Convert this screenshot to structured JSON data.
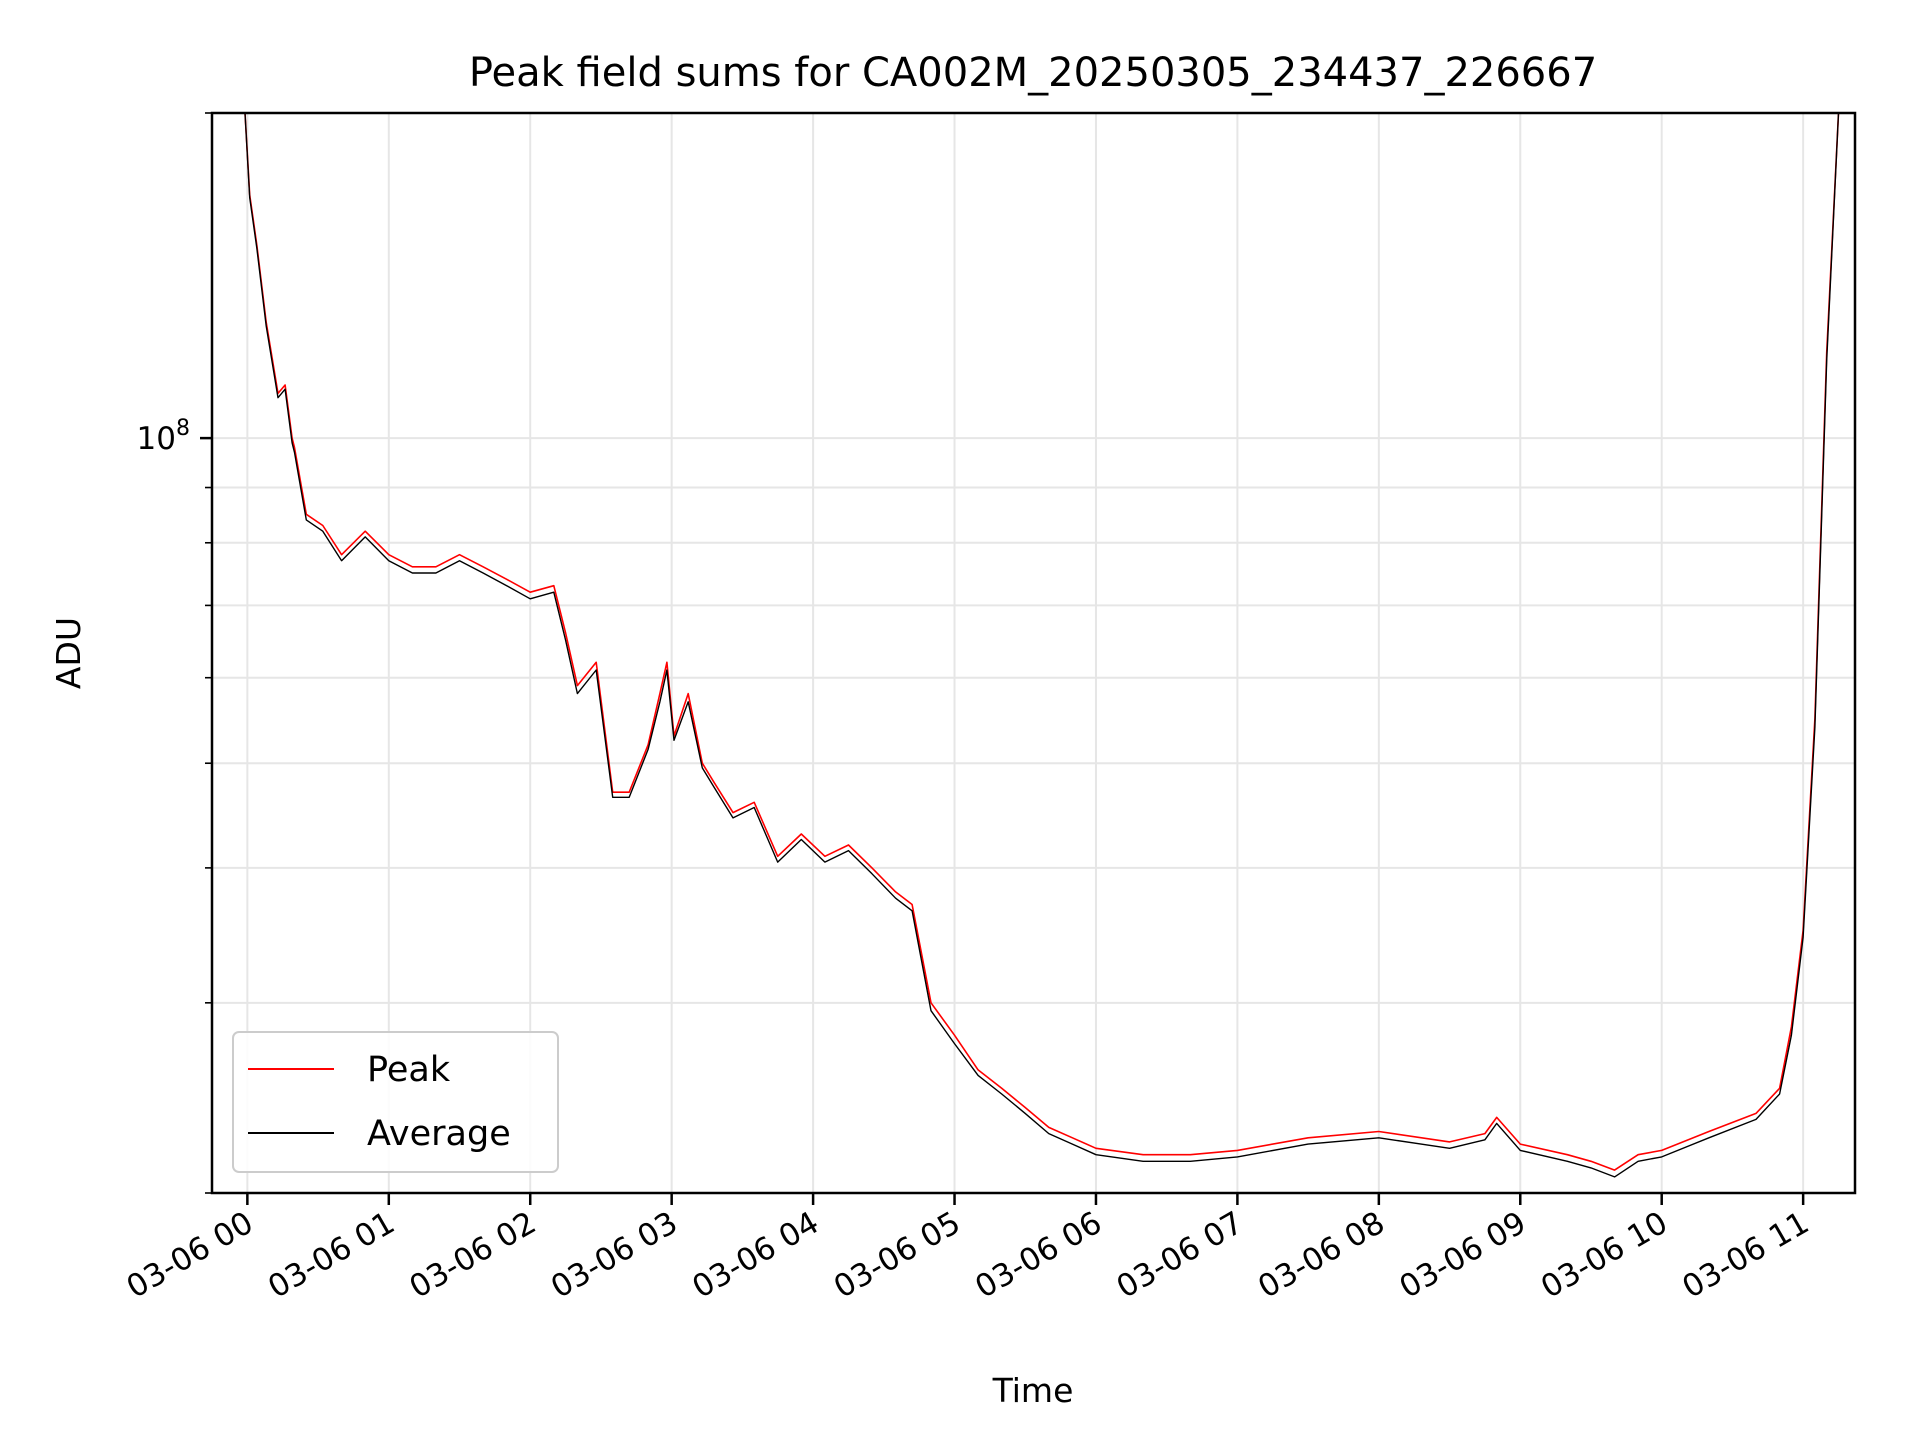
{
  "chart_data": {
    "type": "line",
    "title": "Peak field sums for CA002M_20250305_234437_226667",
    "xlabel": "Time",
    "ylabel": "ADU",
    "yscale": "log",
    "xlim": [
      "2025-03-05T23:45",
      "2025-03-06T11:22"
    ],
    "ylim": [
      20000000,
      200000000
    ],
    "x_ticks": [
      "03-06 00",
      "03-06 01",
      "03-06 02",
      "03-06 03",
      "03-06 04",
      "03-06 05",
      "03-06 06",
      "03-06 07",
      "03-06 08",
      "03-06 09",
      "03-06 10",
      "03-06 11"
    ],
    "y_tick_label": "10^8",
    "grid": true,
    "legend": "lower-left",
    "x": [
      "2025-03-05T23:59",
      "2025-03-06T00:01",
      "2025-03-06T00:04",
      "2025-03-06T00:08",
      "2025-03-06T00:13",
      "2025-03-06T00:16",
      "2025-03-06T00:19",
      "2025-03-06T00:20",
      "2025-03-06T00:25",
      "2025-03-06T00:32",
      "2025-03-06T00:40",
      "2025-03-06T00:50",
      "2025-03-06T01:00",
      "2025-03-06T01:10",
      "2025-03-06T01:20",
      "2025-03-06T01:30",
      "2025-03-06T01:40",
      "2025-03-06T01:50",
      "2025-03-06T02:00",
      "2025-03-06T02:10",
      "2025-03-06T02:15",
      "2025-03-06T02:20",
      "2025-03-06T02:28",
      "2025-03-06T02:35",
      "2025-03-06T02:42",
      "2025-03-06T02:50",
      "2025-03-06T02:55",
      "2025-03-06T02:58",
      "2025-03-06T03:01",
      "2025-03-06T03:07",
      "2025-03-06T03:13",
      "2025-03-06T03:18",
      "2025-03-06T03:26",
      "2025-03-06T03:35",
      "2025-03-06T03:45",
      "2025-03-06T03:55",
      "2025-03-06T04:05",
      "2025-03-06T04:15",
      "2025-03-06T04:25",
      "2025-03-06T04:35",
      "2025-03-06T04:42",
      "2025-03-06T04:50",
      "2025-03-06T05:00",
      "2025-03-06T05:10",
      "2025-03-06T05:20",
      "2025-03-06T05:30",
      "2025-03-06T05:40",
      "2025-03-06T05:50",
      "2025-03-06T06:00",
      "2025-03-06T06:20",
      "2025-03-06T06:40",
      "2025-03-06T07:00",
      "2025-03-06T07:30",
      "2025-03-06T08:00",
      "2025-03-06T08:30",
      "2025-03-06T08:45",
      "2025-03-06T08:50",
      "2025-03-06T09:00",
      "2025-03-06T09:20",
      "2025-03-06T09:30",
      "2025-03-06T09:40",
      "2025-03-06T09:50",
      "2025-03-06T10:00",
      "2025-03-06T10:20",
      "2025-03-06T10:40",
      "2025-03-06T10:50",
      "2025-03-06T10:55",
      "2025-03-06T11:00",
      "2025-03-06T11:05",
      "2025-03-06T11:10",
      "2025-03-06T11:15"
    ],
    "series": [
      {
        "name": "Peak",
        "color": "#ff0000",
        "values": [
          200000000,
          168000000,
          151000000,
          128000000,
          110000000,
          112000000,
          100000000,
          98000000,
          85000000,
          83000000,
          78000000,
          82000000,
          78000000,
          76000000,
          76000000,
          78000000,
          76000000,
          74000000,
          72000000,
          73000000,
          66000000,
          59000000,
          62000000,
          47000000,
          47000000,
          52000000,
          58000000,
          62000000,
          53000000,
          58000000,
          50000000,
          48000000,
          45000000,
          46000000,
          41000000,
          43000000,
          41000000,
          42000000,
          40000000,
          38000000,
          37000000,
          30000000,
          28000000,
          26000000,
          25000000,
          24000000,
          23000000,
          22500000,
          22000000,
          21700000,
          21700000,
          21900000,
          22500000,
          22800000,
          22300000,
          22700000,
          23500000,
          22200000,
          21700000,
          21400000,
          21000000,
          21700000,
          21900000,
          22800000,
          23700000,
          25000000,
          28500000,
          35000000,
          55000000,
          120000000,
          200000000
        ]
      },
      {
        "name": "Average",
        "color": "#000000",
        "values": [
          200000000,
          167000000,
          150000000,
          127000000,
          109000000,
          111000000,
          99000000,
          97000000,
          84000000,
          82000000,
          77000000,
          81000000,
          77000000,
          75000000,
          75000000,
          77000000,
          75000000,
          73000000,
          71000000,
          72000000,
          65000000,
          58000000,
          61000000,
          46500000,
          46500000,
          51500000,
          57000000,
          61000000,
          52500000,
          57000000,
          49500000,
          47500000,
          44500000,
          45500000,
          40500000,
          42500000,
          40500000,
          41500000,
          39500000,
          37500000,
          36500000,
          29500000,
          27500000,
          25700000,
          24700000,
          23700000,
          22700000,
          22200000,
          21700000,
          21400000,
          21400000,
          21600000,
          22200000,
          22500000,
          22000000,
          22400000,
          23200000,
          21900000,
          21400000,
          21100000,
          20700000,
          21400000,
          21600000,
          22500000,
          23400000,
          24700000,
          28000000,
          34500000,
          54000000,
          118000000,
          200000000
        ]
      }
    ]
  }
}
